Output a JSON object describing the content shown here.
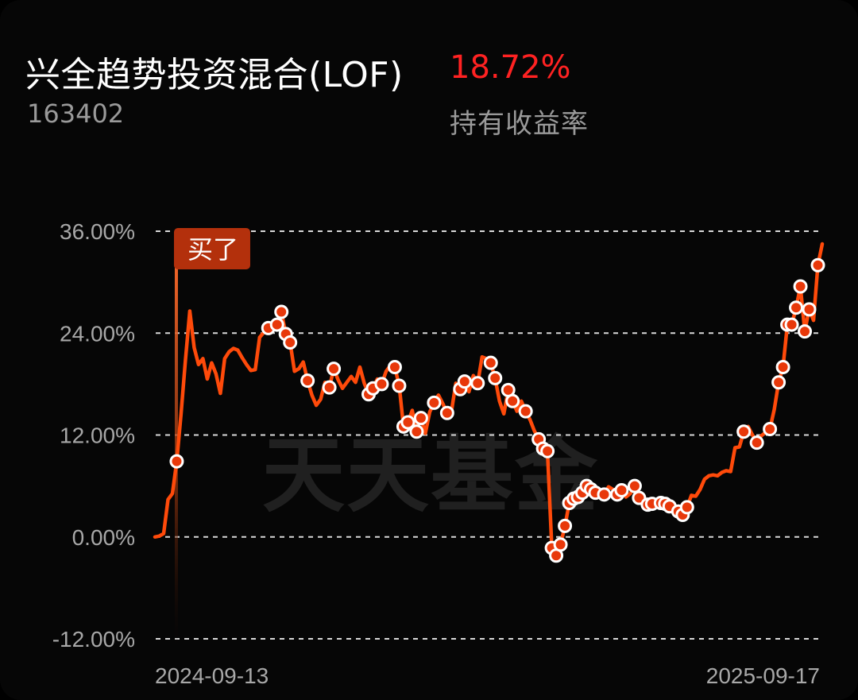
{
  "fund": {
    "name": "兴全趋势投资混合(LOF)",
    "code": "163402",
    "return_value": "18.72%",
    "return_label": "持有收益率"
  },
  "watermark": "天天基金",
  "buy_marker": {
    "label": "买了",
    "date_index": 2
  },
  "colors": {
    "line": "#ff4a0a",
    "return_text": "#ff2222",
    "marker_fill": "#e8380a",
    "buy_badge": "#b3300c",
    "background": "#060606"
  },
  "chart_data": {
    "type": "line",
    "title": "",
    "xlabel": "",
    "ylabel": "",
    "x_start_label": "2024-09-13",
    "x_end_label": "2025-09-17",
    "ylim": [
      -12,
      36
    ],
    "y_ticks": [
      36,
      24,
      12,
      0,
      -12
    ],
    "y_tick_labels": [
      "36.00%",
      "24.00%",
      "12.00%",
      "0.00%",
      "-12.00%"
    ],
    "grid": "horizontal dashed",
    "series": [
      {
        "values": [
          0.0,
          0.1,
          0.4,
          4.4,
          5.1,
          8.9,
          14.5,
          20.8,
          26.6,
          22.3,
          20.3,
          21.0,
          18.6,
          20.5,
          19.2,
          16.9,
          21.0,
          21.8,
          22.2,
          22.0,
          21.1,
          20.3,
          19.6,
          19.7,
          23.5,
          24.1,
          24.6,
          24.5,
          25.0,
          26.5,
          23.9,
          22.9,
          19.5,
          19.8,
          20.6,
          18.4,
          16.7,
          15.5,
          16.2,
          18.2,
          17.6,
          19.8,
          18.5,
          17.5,
          18.2,
          18.9,
          18.2,
          20.0,
          18.1,
          16.8,
          17.5,
          18.6,
          18.0,
          19.5,
          20.2,
          20.0,
          17.8,
          13.0,
          13.5,
          14.9,
          12.4,
          14.0,
          12.2,
          14.7,
          15.8,
          16.7,
          15.7,
          14.6,
          14.8,
          18.1,
          17.4,
          18.3,
          17.1,
          19.0,
          18.1,
          21.2,
          21.0,
          20.5,
          18.7,
          16.0,
          14.5,
          17.3,
          16.0,
          14.8,
          16.0,
          14.8,
          13.8,
          12.5,
          11.5,
          10.4,
          10.1,
          -1.3,
          -2.2,
          -0.9,
          1.3,
          4.0,
          4.5,
          4.7,
          5.2,
          6.0,
          5.6,
          5.2,
          4.8,
          5.0,
          5.9,
          5.6,
          5.0,
          5.5,
          4.7,
          5.1,
          6.0,
          4.6,
          4.2,
          3.8,
          3.9,
          4.2,
          4.0,
          3.9,
          3.6,
          3.3,
          3.0,
          2.6,
          3.5,
          4.9,
          4.8,
          5.6,
          6.8,
          7.2,
          7.3,
          7.2,
          7.6,
          7.8,
          7.7,
          10.5,
          10.6,
          12.4,
          13.0,
          12.0,
          11.1,
          11.9,
          12.3,
          12.7,
          15.0,
          18.2,
          20.0,
          25.0,
          25.0,
          27.0,
          29.5,
          24.2,
          26.8,
          25.5,
          32.0,
          34.5
        ]
      }
    ],
    "point_markers": [
      5,
      26,
      28,
      29,
      30,
      31,
      35,
      40,
      41,
      49,
      50,
      52,
      55,
      56,
      57,
      58,
      60,
      61,
      64,
      67,
      70,
      71,
      74,
      77,
      78,
      81,
      82,
      85,
      88,
      89,
      90,
      91,
      92,
      93,
      94,
      95,
      96,
      97,
      98,
      99,
      100,
      101,
      103,
      106,
      107,
      110,
      111,
      113,
      114,
      116,
      117,
      118,
      120,
      121,
      122,
      135,
      138,
      141,
      143,
      144,
      145,
      146,
      147,
      148,
      149,
      150,
      152
    ]
  }
}
